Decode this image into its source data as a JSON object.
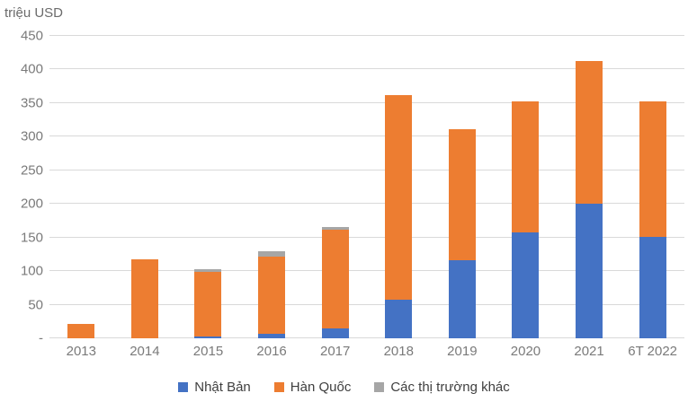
{
  "chart_data": {
    "type": "bar",
    "stacked": true,
    "title": "",
    "ylabel": "triệu USD",
    "xlabel": "",
    "ylim": [
      0,
      450
    ],
    "ytick_step": 50,
    "ytick_labels": [
      "-",
      "50",
      "100",
      "150",
      "200",
      "250",
      "300",
      "350",
      "400",
      "450"
    ],
    "grid": true,
    "legend_position": "bottom",
    "categories": [
      "2013",
      "2014",
      "2015",
      "2016",
      "2017",
      "2018",
      "2019",
      "2020",
      "2021",
      "6T 2022"
    ],
    "series": [
      {
        "key": "japan",
        "name": "Nhật Bản",
        "color": "#4472C4",
        "values": [
          0,
          0,
          3,
          7,
          15,
          57,
          116,
          157,
          200,
          151
        ]
      },
      {
        "key": "korea",
        "name": "Hàn Quốc",
        "color": "#ED7D31",
        "values": [
          22,
          117,
          96,
          114,
          146,
          305,
          195,
          195,
          213,
          202
        ]
      },
      {
        "key": "other",
        "name": "Các thị trường khác",
        "color": "#A6A6A6",
        "values": [
          0,
          0,
          4,
          8,
          4,
          0,
          0,
          0,
          0,
          0
        ]
      }
    ],
    "totals": [
      22,
      117,
      103,
      129,
      165,
      362,
      311,
      352,
      413,
      353
    ]
  },
  "colors": {
    "gridline": "#D9D9D9",
    "axis_text": "#7A7A7A",
    "legend_text": "#3F3F3F",
    "background": "#FFFFFF"
  }
}
